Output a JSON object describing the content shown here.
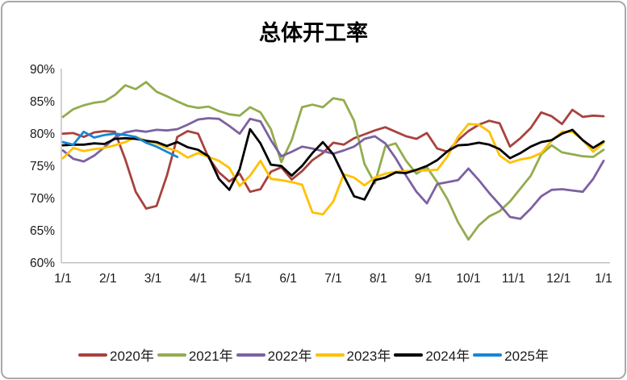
{
  "title": "总体开工率",
  "colors": {
    "axis_line": "#BFBFBF",
    "text": "#1A1A1A",
    "card_border": "#A9A9A9",
    "background": "#FFFFFF"
  },
  "chart_data": {
    "type": "line",
    "title": "总体开工率",
    "xlabel": "",
    "ylabel": "",
    "grid": false,
    "legend_position": "bottom",
    "ylim": [
      60,
      90
    ],
    "yticks": {
      "values": [
        90,
        85,
        80,
        75,
        70,
        65,
        60
      ],
      "labels": [
        "90%",
        "85%",
        "80%",
        "75%",
        "70%",
        "65%",
        "60%"
      ]
    },
    "xticks": {
      "labels": [
        "1/1",
        "2/1",
        "3/1",
        "4/1",
        "5/1",
        "6/1",
        "7/1",
        "8/1",
        "9/1",
        "10/1",
        "11/1",
        "12/1",
        "1/1"
      ]
    },
    "x_resolution": "weekly, index 0-52 across one year",
    "series": [
      {
        "name": "2020年",
        "color": "#A8423C",
        "values": [
          80.0,
          80.1,
          79.5,
          80.2,
          80.4,
          80.3,
          76.0,
          71.0,
          68.4,
          68.8,
          73.5,
          79.5,
          80.4,
          80.0,
          76.3,
          74.0,
          72.6,
          73.8,
          71.0,
          71.4,
          74.1,
          74.8,
          72.9,
          74.2,
          75.9,
          77.0,
          78.6,
          78.3,
          79.3,
          79.9,
          80.5,
          81.0,
          80.3,
          79.6,
          79.2,
          80.1,
          77.7,
          77.2,
          79.0,
          80.4,
          81.4,
          82.0,
          81.6,
          78.0,
          79.3,
          80.9,
          83.3,
          82.7,
          81.5,
          83.7,
          82.6,
          82.8,
          82.7
        ]
      },
      {
        "name": "2021年",
        "color": "#93AC4E",
        "values": [
          82.6,
          83.8,
          84.4,
          84.8,
          85.0,
          86.0,
          87.5,
          86.9,
          88.0,
          86.5,
          85.8,
          85.0,
          84.3,
          84.0,
          84.2,
          83.5,
          83.0,
          82.8,
          84.1,
          83.3,
          80.7,
          75.6,
          79.0,
          84.1,
          84.5,
          84.1,
          85.5,
          85.2,
          82.0,
          75.3,
          72.3,
          78.0,
          78.5,
          75.8,
          73.8,
          74.8,
          72.5,
          69.8,
          66.3,
          63.6,
          65.8,
          67.2,
          68.0,
          69.5,
          71.5,
          73.5,
          76.8,
          78.2,
          77.1,
          76.8,
          76.5,
          76.4,
          77.5
        ]
      },
      {
        "name": "2022年",
        "color": "#7C61A1",
        "values": [
          77.4,
          76.1,
          75.7,
          76.6,
          77.9,
          79.4,
          80.2,
          80.5,
          80.3,
          80.6,
          80.5,
          80.7,
          81.4,
          82.2,
          82.4,
          82.3,
          81.2,
          80.0,
          82.3,
          81.9,
          79.0,
          76.5,
          77.2,
          78.0,
          77.7,
          77.3,
          76.9,
          77.4,
          78.0,
          79.2,
          79.6,
          78.5,
          76.2,
          73.5,
          71.0,
          69.2,
          72.2,
          72.5,
          72.8,
          74.6,
          72.8,
          70.8,
          69.0,
          67.1,
          66.8,
          68.4,
          70.3,
          71.3,
          71.4,
          71.2,
          71.0,
          73.0,
          75.8
        ]
      },
      {
        "name": "2023年",
        "color": "#FFC000",
        "values": [
          76.2,
          77.8,
          77.3,
          77.6,
          77.8,
          78.2,
          78.7,
          79.5,
          78.9,
          78.5,
          77.8,
          77.3,
          76.3,
          77.0,
          76.4,
          75.8,
          74.7,
          71.9,
          73.5,
          75.8,
          73.0,
          72.8,
          72.5,
          72.1,
          67.8,
          67.5,
          69.5,
          73.7,
          73.2,
          72.0,
          73.2,
          73.8,
          74.1,
          74.2,
          74.3,
          74.3,
          74.4,
          76.5,
          79.5,
          81.5,
          81.4,
          80.3,
          76.6,
          75.5,
          76.0,
          76.3,
          77.0,
          78.9,
          80.3,
          80.3,
          79.0,
          77.2,
          78.6
        ]
      },
      {
        "name": "2024年",
        "color": "#000000",
        "values": [
          78.2,
          78.3,
          78.3,
          78.5,
          78.4,
          79.2,
          79.3,
          79.2,
          78.9,
          78.7,
          78.1,
          78.7,
          77.9,
          77.5,
          76.5,
          73.0,
          71.3,
          74.5,
          80.7,
          78.5,
          75.2,
          75.0,
          73.5,
          75.0,
          77.0,
          78.7,
          76.8,
          73.5,
          70.3,
          69.8,
          72.8,
          73.2,
          74.0,
          73.9,
          74.4,
          75.0,
          75.9,
          77.3,
          78.2,
          78.3,
          78.6,
          78.3,
          77.6,
          76.2,
          77.0,
          78.0,
          78.7,
          79.0,
          80.0,
          80.6,
          79.0,
          77.8,
          78.8
        ]
      },
      {
        "name": "2025年",
        "color": "#1587D8",
        "values": [
          78.7,
          78.3,
          80.3,
          79.4,
          79.8,
          80.0,
          79.8,
          79.5,
          78.6,
          78.0,
          77.2,
          76.4
        ]
      }
    ]
  }
}
